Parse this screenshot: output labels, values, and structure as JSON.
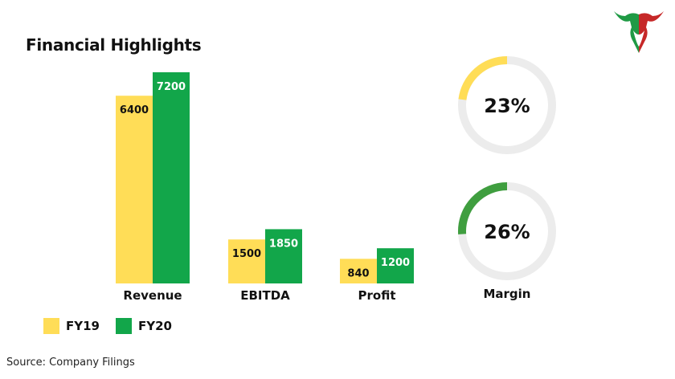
{
  "header": {
    "title": "Financial Highlights"
  },
  "legend": [
    {
      "label": "FY19",
      "color": "#FFDD57"
    },
    {
      "label": "FY20",
      "color": "#12A64A"
    }
  ],
  "footer": {
    "source": "Source: Company Filings"
  },
  "chart_data": [
    {
      "type": "bar",
      "categories": [
        "Revenue",
        "EBITDA",
        "Profit"
      ],
      "series": [
        {
          "name": "FY19",
          "values": [
            6400,
            1500,
            840
          ],
          "color": "#FFDD57"
        },
        {
          "name": "FY20",
          "values": [
            7200,
            1850,
            1200
          ],
          "color": "#12A64A"
        }
      ],
      "ylim": [
        0,
        7200
      ],
      "grid": false,
      "legend_position": "bottom-left"
    },
    {
      "type": "pie",
      "label": "Margin",
      "rings": [
        {
          "value": 23,
          "text": "23%",
          "color": "#FFDD57"
        },
        {
          "value": 26,
          "text": "26%",
          "color": "#3F9E3F"
        }
      ],
      "track_color": "#ECECEC"
    }
  ]
}
